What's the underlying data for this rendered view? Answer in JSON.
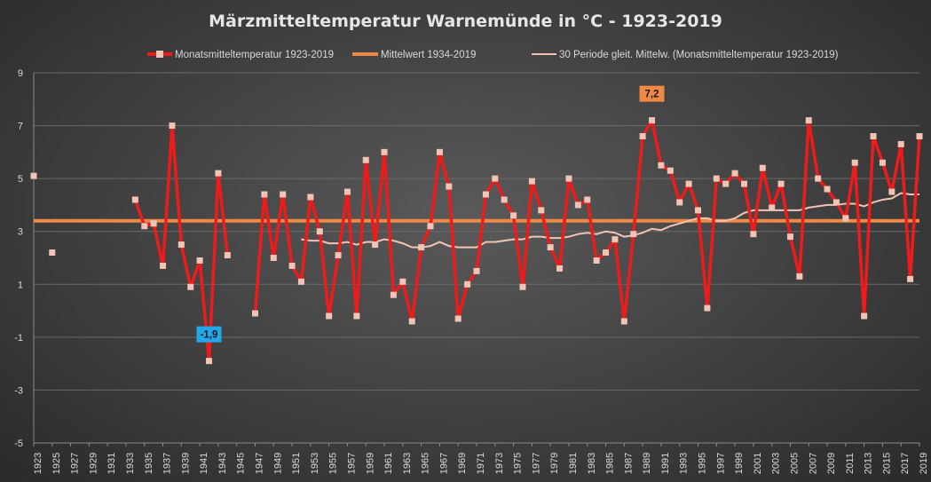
{
  "chart_data": {
    "type": "line",
    "title": "Märzmitteltemperatur  Warnemünde  in °C - 1923-2019",
    "xlabel": "",
    "ylabel": "",
    "xlim": [
      1923,
      2019
    ],
    "ylim": [
      -5,
      9
    ],
    "yticks": [
      9,
      7,
      5,
      3,
      1,
      -1,
      -3,
      -5
    ],
    "xtick_start": 1923,
    "xtick_step": 2,
    "xtick_end": 2019,
    "grid": true,
    "legend_position": "top",
    "colors": {
      "monthly": "#ee1b1b",
      "marker": "#f2c4b6",
      "mean": "#ee8a45",
      "smooth": "#f2c4b6"
    },
    "series": [
      {
        "name": "Monatsmitteltemperatur 1923-2019",
        "x": [
          1923,
          1924,
          1925,
          1926,
          1927,
          1928,
          1929,
          1930,
          1931,
          1932,
          1933,
          1934,
          1935,
          1936,
          1937,
          1938,
          1939,
          1940,
          1941,
          1942,
          1943,
          1944,
          1945,
          1946,
          1947,
          1948,
          1949,
          1950,
          1951,
          1952,
          1953,
          1954,
          1955,
          1956,
          1957,
          1958,
          1959,
          1960,
          1961,
          1962,
          1963,
          1964,
          1965,
          1966,
          1967,
          1968,
          1969,
          1970,
          1971,
          1972,
          1973,
          1974,
          1975,
          1976,
          1977,
          1978,
          1979,
          1980,
          1981,
          1982,
          1983,
          1984,
          1985,
          1986,
          1987,
          1988,
          1989,
          1990,
          1991,
          1992,
          1993,
          1994,
          1995,
          1996,
          1997,
          1998,
          1999,
          2000,
          2001,
          2002,
          2003,
          2004,
          2005,
          2006,
          2007,
          2008,
          2009,
          2010,
          2011,
          2012,
          2013,
          2014,
          2015,
          2016,
          2017,
          2018,
          2019
        ],
        "values": [
          5.1,
          null,
          2.2,
          null,
          null,
          null,
          null,
          null,
          null,
          null,
          null,
          4.2,
          3.2,
          3.3,
          1.7,
          7.0,
          2.5,
          0.9,
          1.9,
          -1.9,
          5.2,
          2.1,
          null,
          null,
          -0.1,
          4.4,
          2.0,
          4.4,
          1.7,
          1.1,
          4.3,
          3.0,
          -0.2,
          2.1,
          4.5,
          -0.2,
          5.7,
          2.5,
          6.0,
          0.6,
          1.1,
          -0.4,
          2.4,
          3.2,
          6.0,
          4.7,
          -0.3,
          1.0,
          1.5,
          4.4,
          5.0,
          4.2,
          3.6,
          0.9,
          4.9,
          3.8,
          2.4,
          1.6,
          5.0,
          4.0,
          4.2,
          1.9,
          2.2,
          2.7,
          -0.4,
          2.9,
          6.6,
          7.2,
          5.5,
          5.3,
          4.1,
          4.8,
          3.8,
          0.1,
          5.0,
          4.8,
          5.2,
          4.8,
          2.9,
          5.4,
          3.9,
          4.8,
          2.8,
          1.3,
          7.2,
          5.0,
          4.6,
          4.1,
          3.5,
          5.6,
          -0.2,
          6.6,
          5.6,
          4.5,
          6.3,
          1.2,
          6.6
        ]
      },
      {
        "name": "Mittelwert 1934-2019",
        "value": 3.4
      },
      {
        "name": "30 Periode gleit. Mittelw. (Monatsmitteltemperatur 1923-2019)",
        "x": [
          1952,
          1953,
          1954,
          1955,
          1956,
          1957,
          1958,
          1959,
          1960,
          1961,
          1962,
          1963,
          1964,
          1965,
          1966,
          1967,
          1968,
          1969,
          1970,
          1971,
          1972,
          1973,
          1974,
          1975,
          1976,
          1977,
          1978,
          1979,
          1980,
          1981,
          1982,
          1983,
          1984,
          1985,
          1986,
          1987,
          1988,
          1989,
          1990,
          1991,
          1992,
          1993,
          1994,
          1995,
          1996,
          1997,
          1998,
          1999,
          2000,
          2001,
          2002,
          2003,
          2004,
          2005,
          2006,
          2007,
          2008,
          2009,
          2010,
          2011,
          2012,
          2013,
          2014,
          2015,
          2016,
          2017,
          2018,
          2019
        ],
        "values": [
          2.7,
          2.65,
          2.65,
          2.55,
          2.55,
          2.6,
          2.5,
          2.6,
          2.6,
          2.7,
          2.65,
          2.55,
          2.4,
          2.4,
          2.45,
          2.6,
          2.45,
          2.4,
          2.4,
          2.4,
          2.6,
          2.6,
          2.65,
          2.7,
          2.7,
          2.8,
          2.8,
          2.75,
          2.75,
          2.8,
          2.9,
          2.95,
          2.9,
          3.0,
          2.95,
          2.8,
          2.85,
          2.95,
          3.1,
          3.05,
          3.2,
          3.3,
          3.4,
          3.5,
          3.5,
          3.4,
          3.4,
          3.5,
          3.7,
          3.8,
          3.8,
          3.8,
          3.8,
          3.8,
          3.8,
          3.9,
          3.95,
          4.0,
          4.0,
          4.05,
          4.05,
          3.95,
          4.1,
          4.2,
          4.25,
          4.45,
          4.4,
          4.4
        ]
      }
    ],
    "annotations": [
      {
        "year": 1942,
        "value": -1.9,
        "text": "-1,9",
        "bg": "#22a8e8",
        "fg": "#1a1a1a",
        "position": "above"
      },
      {
        "year": 1990,
        "value": 7.2,
        "text": "7,2",
        "bg": "#ee8a45",
        "fg": "#1a1a1a",
        "position": "above"
      }
    ]
  }
}
